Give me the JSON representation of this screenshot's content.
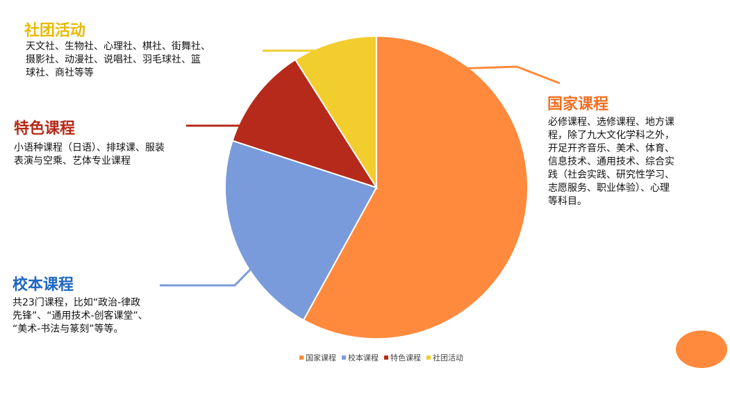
{
  "colors": {
    "national": "#FF8A3D",
    "school": "#7A9BDB",
    "special": "#B52A1A",
    "club": "#F2CD2E",
    "decoration": "#FF8A3D",
    "desc_text": "#111111"
  },
  "annotations": {
    "club": {
      "title": "社团活动",
      "lines": [
        "天文社、生物社、心理社、棋社、街舞社、",
        "摄影社、动漫社、说唱社、羽毛球社、篮",
        "球社、商社等等"
      ]
    },
    "special": {
      "title": "特色课程",
      "lines": [
        "小语种课程（日语）、排球课、服装",
        "表演与空乘、艺体专业课程"
      ]
    },
    "school": {
      "title": "校本课程",
      "lines": [
        "共23门课程，比如“政治-律政",
        "先锋”、“通用技术-创客课堂”、",
        "“美术-书法与篆刻”等等。"
      ]
    },
    "national": {
      "title": "国家课程",
      "lines": [
        "必修课程、选修课程、地方课",
        "程，除了九大文化学科之外，",
        "开足开齐音乐、美术、体育、",
        "信息技术、通用技术、综合实",
        "践（社会实践、研究性学习、",
        "志愿服务、职业体验）、心理",
        "等科目。"
      ]
    }
  },
  "chart_data": {
    "type": "pie",
    "title": "",
    "categories": [
      "国家课程",
      "校本课程",
      "特色课程",
      "社团活动"
    ],
    "values": [
      58,
      22,
      11,
      9
    ],
    "colors": [
      "#FF8A3D",
      "#7A9BDB",
      "#B52A1A",
      "#F2CD2E"
    ],
    "legend_position": "bottom"
  }
}
